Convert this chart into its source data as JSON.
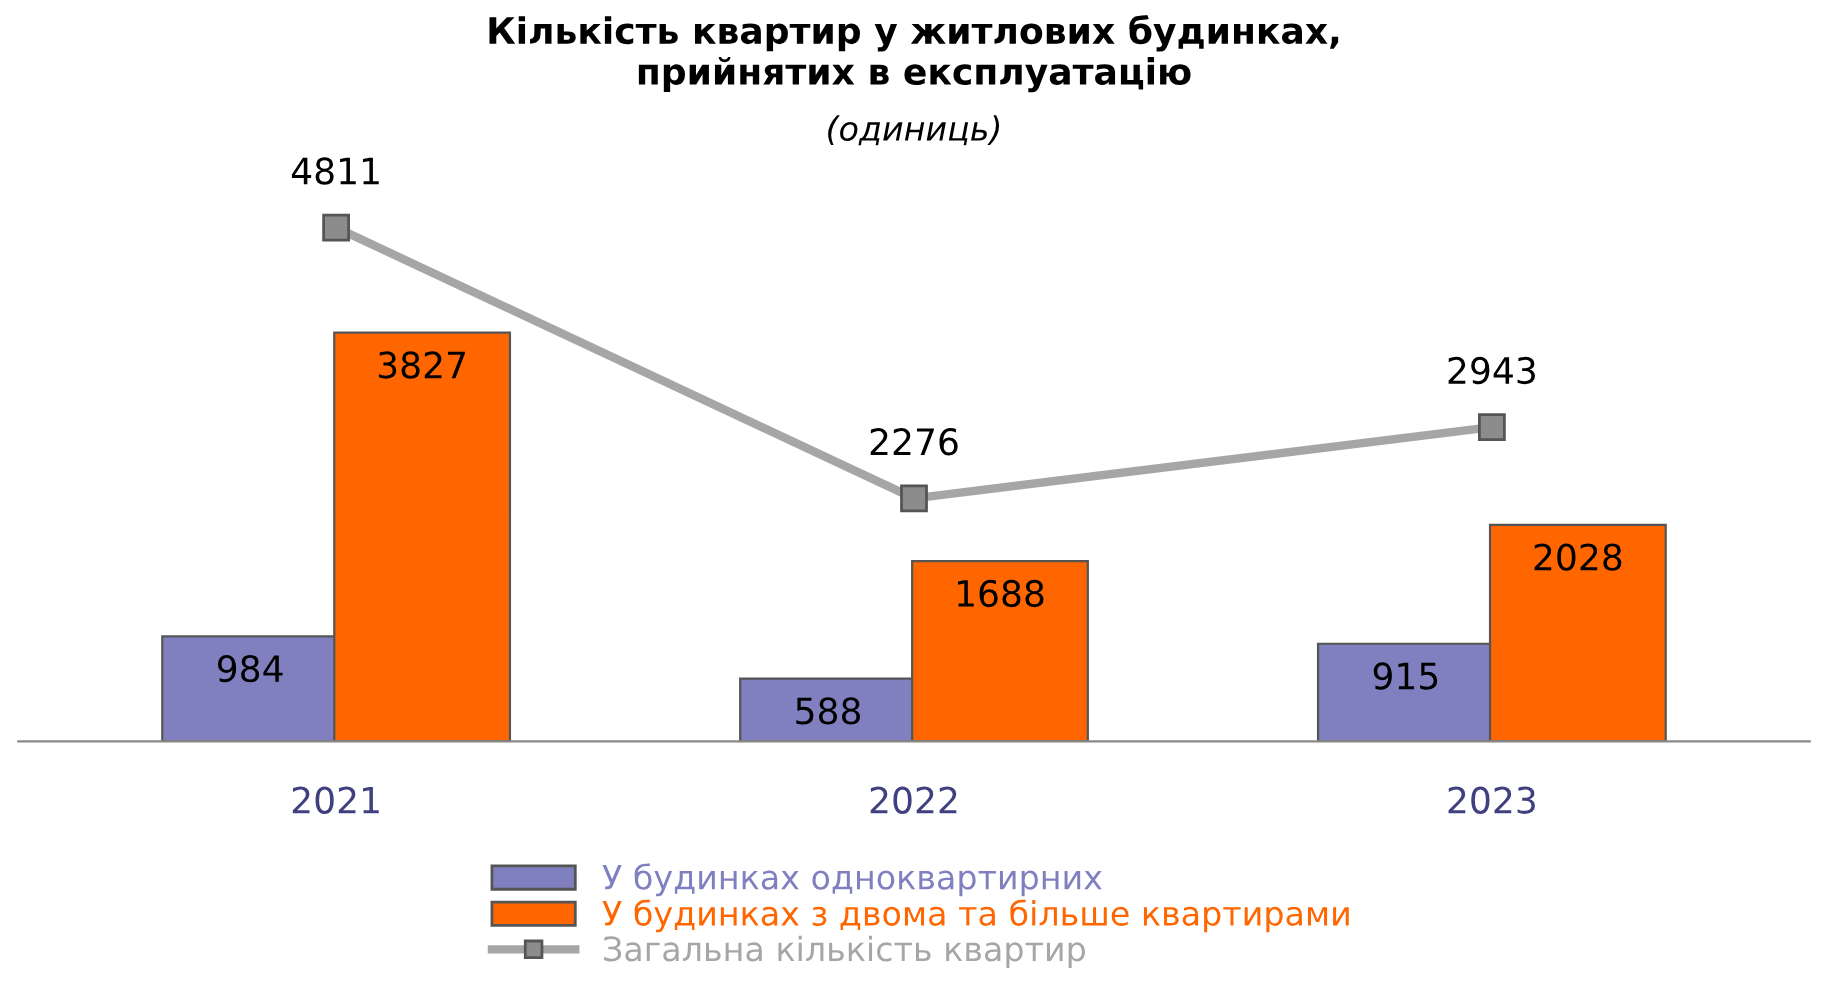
{
  "chart_data": {
    "type": "bar",
    "title": "Кількість квартир у житлових будинках,\nприйнятих в експлуатацію",
    "subtitle": "(одиниць)",
    "categories": [
      "2021",
      "2022",
      "2023"
    ],
    "series": [
      {
        "name": "У будинках одноквартирних",
        "color": "#8080c0",
        "values": [
          984,
          588,
          915
        ]
      },
      {
        "name": "У будинках з двома та більше квартирами",
        "color": "#ff6600",
        "values": [
          3827,
          1688,
          2028
        ]
      },
      {
        "name": "Загальна кількість квартир",
        "color": "#a6a6a6",
        "type": "line",
        "marker": "square",
        "values": [
          4811,
          2276,
          2943
        ]
      }
    ],
    "data_labels": true,
    "legend": "bottom",
    "grid": false
  }
}
